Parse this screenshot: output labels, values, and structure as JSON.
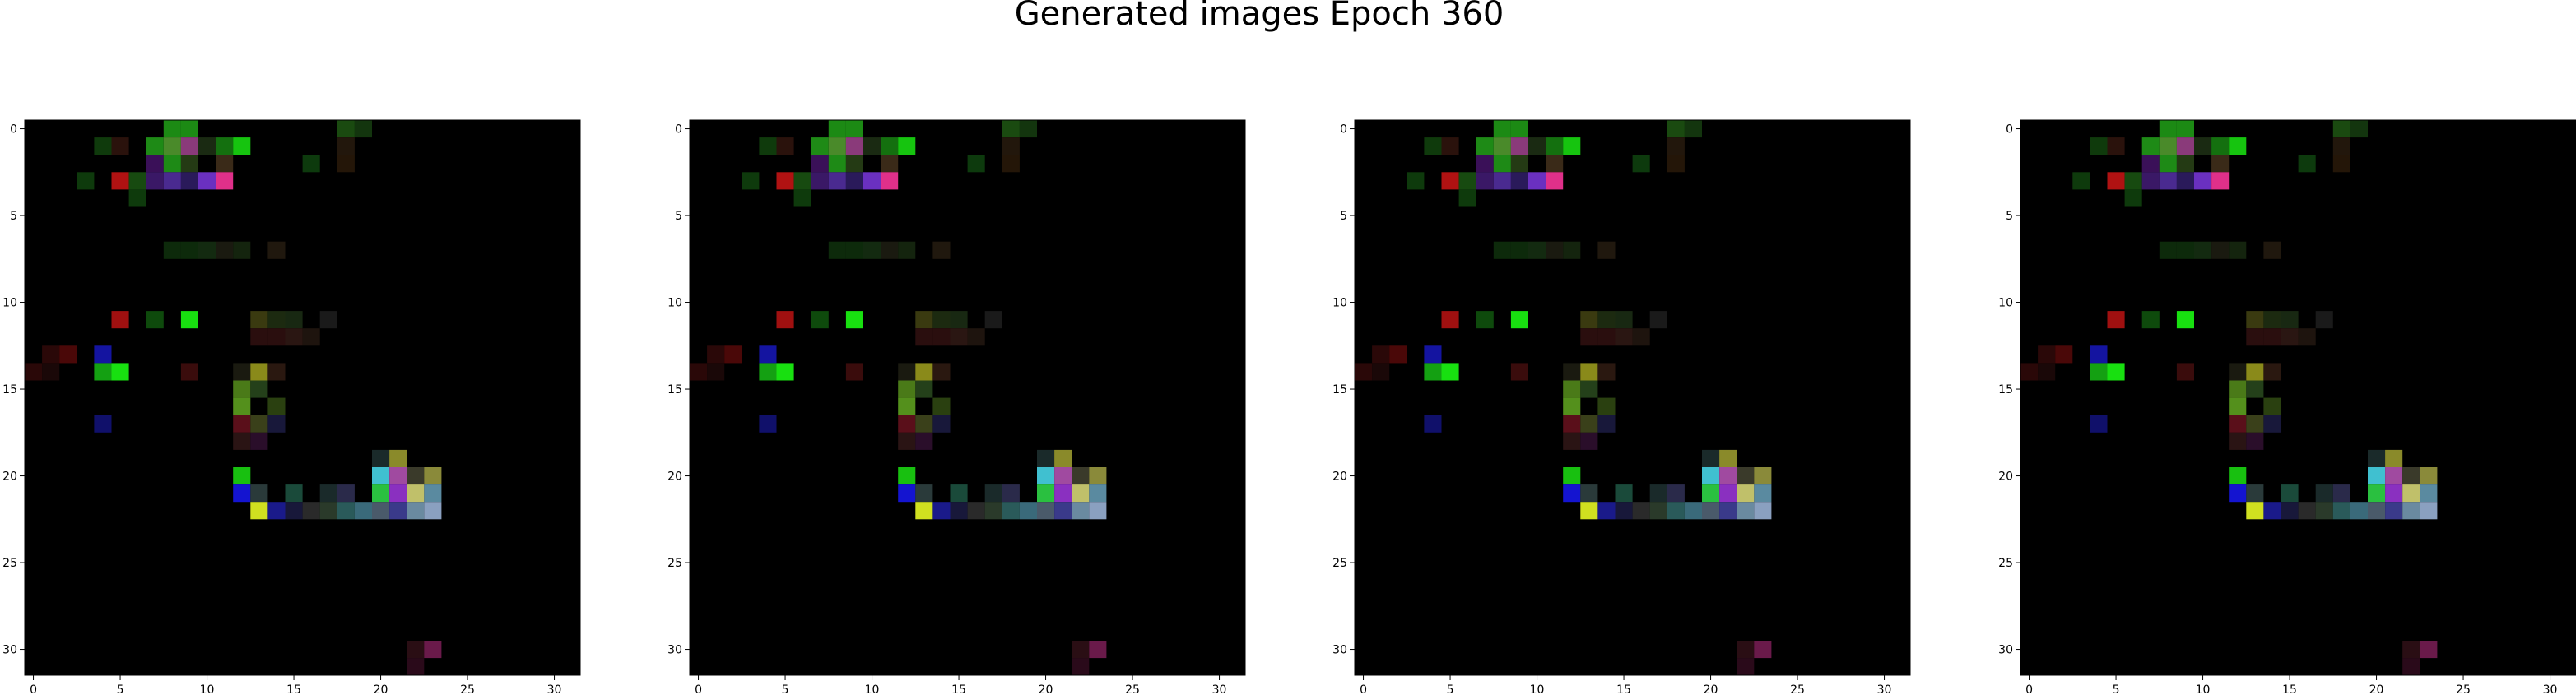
{
  "figure": {
    "title": "Generated images Epoch 360"
  },
  "chart_data": [
    {
      "type": "heatmap",
      "panel": 1,
      "xlim": [
        -0.5,
        31.5
      ],
      "ylim": [
        31.5,
        -0.5
      ],
      "xticks": [
        0,
        5,
        10,
        15,
        20,
        25,
        30
      ],
      "yticks": [
        0,
        5,
        10,
        15,
        20,
        25,
        30
      ],
      "grid": false,
      "legend": "none"
    },
    {
      "type": "heatmap",
      "panel": 2,
      "xlim": [
        -0.5,
        31.5
      ],
      "ylim": [
        31.5,
        -0.5
      ],
      "xticks": [
        0,
        5,
        10,
        15,
        20,
        25,
        30
      ],
      "yticks": [
        0,
        5,
        10,
        15,
        20,
        25,
        30
      ],
      "grid": false,
      "legend": "none"
    },
    {
      "type": "heatmap",
      "panel": 3,
      "xlim": [
        -0.5,
        31.5
      ],
      "ylim": [
        31.5,
        -0.5
      ],
      "xticks": [
        0,
        5,
        10,
        15,
        20,
        25,
        30
      ],
      "yticks": [
        0,
        5,
        10,
        15,
        20,
        25,
        30
      ],
      "grid": false,
      "legend": "none"
    },
    {
      "type": "heatmap",
      "panel": 4,
      "xlim": [
        -0.5,
        31.5
      ],
      "ylim": [
        31.5,
        -0.5
      ],
      "xticks": [
        0,
        5,
        10,
        15,
        20,
        25,
        30
      ],
      "yticks": [
        0,
        5,
        10,
        15,
        20,
        25,
        30
      ],
      "grid": false,
      "legend": "none"
    }
  ],
  "image_pixels": [
    {
      "x": 8,
      "y": 0,
      "color": "#1c8a14"
    },
    {
      "x": 9,
      "y": 0,
      "color": "#1c8a14"
    },
    {
      "x": 18,
      "y": 0,
      "color": "#1a4a10"
    },
    {
      "x": 19,
      "y": 0,
      "color": "#13350e"
    },
    {
      "x": 4,
      "y": 1,
      "color": "#0f3a0c"
    },
    {
      "x": 5,
      "y": 1,
      "color": "#2a120c"
    },
    {
      "x": 7,
      "y": 1,
      "color": "#1e8a16"
    },
    {
      "x": 8,
      "y": 1,
      "color": "#4a8a2a"
    },
    {
      "x": 9,
      "y": 1,
      "color": "#8a3a7a"
    },
    {
      "x": 10,
      "y": 1,
      "color": "#1a2a12"
    },
    {
      "x": 11,
      "y": 1,
      "color": "#14700f"
    },
    {
      "x": 12,
      "y": 1,
      "color": "#16c40f"
    },
    {
      "x": 18,
      "y": 1,
      "color": "#22170c"
    },
    {
      "x": 7,
      "y": 2,
      "color": "#3a1058"
    },
    {
      "x": 8,
      "y": 2,
      "color": "#1e8a16"
    },
    {
      "x": 9,
      "y": 2,
      "color": "#243a14"
    },
    {
      "x": 11,
      "y": 2,
      "color": "#3a2a18"
    },
    {
      "x": 16,
      "y": 2,
      "color": "#0d3a0d"
    },
    {
      "x": 18,
      "y": 2,
      "color": "#241608"
    },
    {
      "x": 3,
      "y": 3,
      "color": "#0e3a0c"
    },
    {
      "x": 5,
      "y": 3,
      "color": "#b01212"
    },
    {
      "x": 6,
      "y": 3,
      "color": "#174a10"
    },
    {
      "x": 7,
      "y": 3,
      "color": "#3a1866"
    },
    {
      "x": 8,
      "y": 3,
      "color": "#4a2a90"
    },
    {
      "x": 9,
      "y": 3,
      "color": "#2a1a5a"
    },
    {
      "x": 10,
      "y": 3,
      "color": "#6a30c0"
    },
    {
      "x": 11,
      "y": 3,
      "color": "#e0308a"
    },
    {
      "x": 6,
      "y": 4,
      "color": "#0e3a0c"
    },
    {
      "x": 8,
      "y": 7,
      "color": "#0d2a0b"
    },
    {
      "x": 9,
      "y": 7,
      "color": "#0d2a0b"
    },
    {
      "x": 10,
      "y": 7,
      "color": "#132a10"
    },
    {
      "x": 11,
      "y": 7,
      "color": "#1a1a10"
    },
    {
      "x": 12,
      "y": 7,
      "color": "#14240e"
    },
    {
      "x": 14,
      "y": 7,
      "color": "#20180e"
    },
    {
      "x": 5,
      "y": 11,
      "color": "#a01010"
    },
    {
      "x": 7,
      "y": 11,
      "color": "#0e4a0c"
    },
    {
      "x": 9,
      "y": 11,
      "color": "#18e010"
    },
    {
      "x": 13,
      "y": 11,
      "color": "#3a3a10"
    },
    {
      "x": 14,
      "y": 11,
      "color": "#1c2a10"
    },
    {
      "x": 15,
      "y": 11,
      "color": "#182812"
    },
    {
      "x": 17,
      "y": 11,
      "color": "#1a1a1a"
    },
    {
      "x": 13,
      "y": 12,
      "color": "#2a0e0e"
    },
    {
      "x": 14,
      "y": 12,
      "color": "#2a0e0e"
    },
    {
      "x": 15,
      "y": 12,
      "color": "#2a1612"
    },
    {
      "x": 16,
      "y": 12,
      "color": "#1e140e"
    },
    {
      "x": 1,
      "y": 13,
      "color": "#2a0808"
    },
    {
      "x": 2,
      "y": 13,
      "color": "#4a0808"
    },
    {
      "x": 4,
      "y": 13,
      "color": "#1414a0"
    },
    {
      "x": 0,
      "y": 14,
      "color": "#2a0808"
    },
    {
      "x": 1,
      "y": 14,
      "color": "#1a0808"
    },
    {
      "x": 4,
      "y": 14,
      "color": "#14a012"
    },
    {
      "x": 5,
      "y": 14,
      "color": "#18e010"
    },
    {
      "x": 9,
      "y": 14,
      "color": "#3a0c0c"
    },
    {
      "x": 12,
      "y": 14,
      "color": "#1a1a10"
    },
    {
      "x": 13,
      "y": 14,
      "color": "#8a8a1a"
    },
    {
      "x": 14,
      "y": 14,
      "color": "#2a1810"
    },
    {
      "x": 12,
      "y": 15,
      "color": "#4a7a18"
    },
    {
      "x": 13,
      "y": 15,
      "color": "#24401a"
    },
    {
      "x": 12,
      "y": 16,
      "color": "#54901c"
    },
    {
      "x": 14,
      "y": 16,
      "color": "#2a4010"
    },
    {
      "x": 4,
      "y": 17,
      "color": "#10106a"
    },
    {
      "x": 12,
      "y": 17,
      "color": "#5a0f1a"
    },
    {
      "x": 13,
      "y": 17,
      "color": "#3a401a"
    },
    {
      "x": 14,
      "y": 17,
      "color": "#18183a"
    },
    {
      "x": 12,
      "y": 18,
      "color": "#2a1414"
    },
    {
      "x": 13,
      "y": 18,
      "color": "#2a0e2a"
    },
    {
      "x": 20,
      "y": 19,
      "color": "#1a2a2a"
    },
    {
      "x": 21,
      "y": 19,
      "color": "#8a8a2a"
    },
    {
      "x": 12,
      "y": 20,
      "color": "#18c010"
    },
    {
      "x": 20,
      "y": 20,
      "color": "#40c0d0"
    },
    {
      "x": 21,
      "y": 20,
      "color": "#a04aa0"
    },
    {
      "x": 22,
      "y": 20,
      "color": "#3a3a2a"
    },
    {
      "x": 23,
      "y": 20,
      "color": "#8a8a3a"
    },
    {
      "x": 12,
      "y": 21,
      "color": "#1414d0"
    },
    {
      "x": 13,
      "y": 21,
      "color": "#2a3a3a"
    },
    {
      "x": 15,
      "y": 21,
      "color": "#1a4a3a"
    },
    {
      "x": 17,
      "y": 21,
      "color": "#1a2a2a"
    },
    {
      "x": 18,
      "y": 21,
      "color": "#2a2a4a"
    },
    {
      "x": 20,
      "y": 21,
      "color": "#2ac040"
    },
    {
      "x": 21,
      "y": 21,
      "color": "#8a30c0"
    },
    {
      "x": 22,
      "y": 21,
      "color": "#c0c06a"
    },
    {
      "x": 23,
      "y": 21,
      "color": "#5a8aa0"
    },
    {
      "x": 13,
      "y": 22,
      "color": "#d0e020"
    },
    {
      "x": 14,
      "y": 22,
      "color": "#1a1a8a"
    },
    {
      "x": 15,
      "y": 22,
      "color": "#18183a"
    },
    {
      "x": 16,
      "y": 22,
      "color": "#2a2a2a"
    },
    {
      "x": 17,
      "y": 22,
      "color": "#2a3a2a"
    },
    {
      "x": 18,
      "y": 22,
      "color": "#2a5a5a"
    },
    {
      "x": 19,
      "y": 22,
      "color": "#3a6a7a"
    },
    {
      "x": 20,
      "y": 22,
      "color": "#4a5a6a"
    },
    {
      "x": 21,
      "y": 22,
      "color": "#3a3a8a"
    },
    {
      "x": 22,
      "y": 22,
      "color": "#6a8aa0"
    },
    {
      "x": 23,
      "y": 22,
      "color": "#8aa0c0"
    },
    {
      "x": 22,
      "y": 30,
      "color": "#2a0e14"
    },
    {
      "x": 23,
      "y": 30,
      "color": "#6a1a4a"
    },
    {
      "x": 22,
      "y": 31,
      "color": "#2a0a1a"
    }
  ]
}
